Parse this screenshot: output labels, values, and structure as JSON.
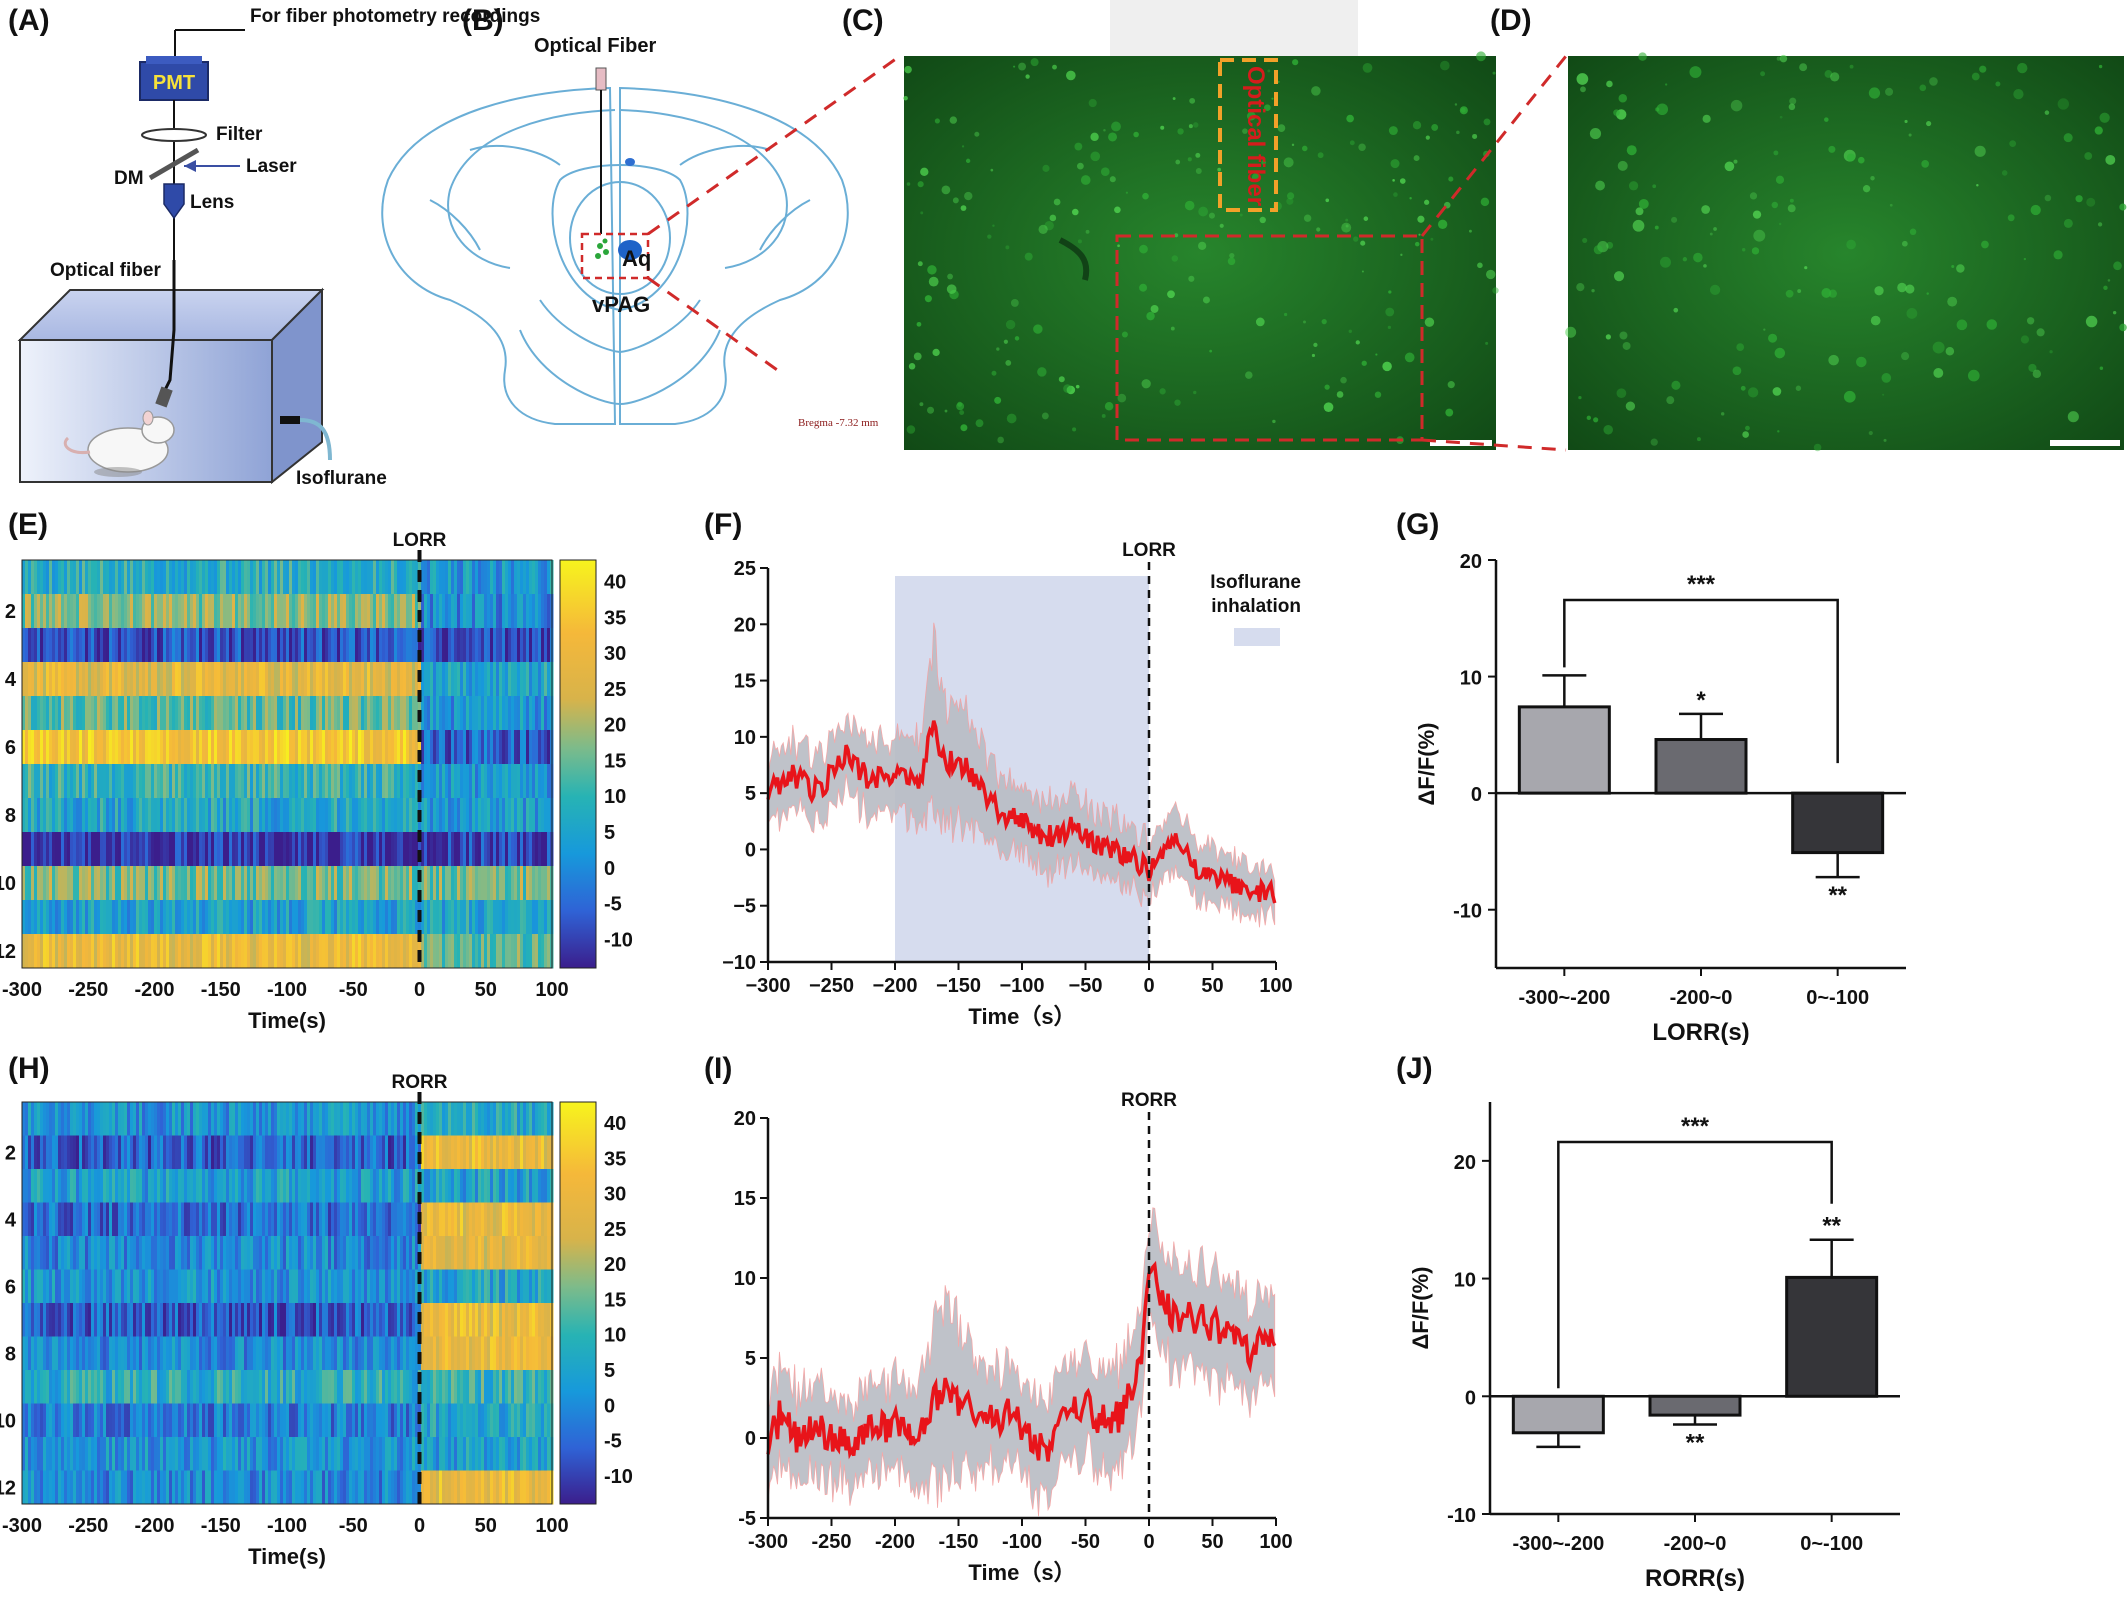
{
  "panel_labels": [
    "(A)",
    "(B)",
    "(C)",
    "(D)",
    "(E)",
    "(F)",
    "(G)",
    "(H)",
    "(I)",
    "(J)"
  ],
  "panel_a": {
    "fiber_photometry": "For fiber photometry recordings",
    "pmt": "PMT",
    "filter": "Filter",
    "dm": "DM",
    "laser": "Laser",
    "lens": "Lens",
    "optical_fiber": "Optical fiber",
    "isoflurane": "Isoflurane"
  },
  "panel_b": {
    "optical_fiber": "Optical Fiber",
    "aq": "Aq",
    "vpag": "vPAG",
    "bregma": "Bregma -7.32 mm"
  },
  "panel_c": {
    "label": "Optical fiber"
  },
  "colors": {
    "red_trace": "#e8141a",
    "shade_grey": "#b9bcc4",
    "shade_blue": "#d6dcee",
    "bar_light": "#a7a7ad",
    "bar_mid": "#6a6a70",
    "bar_dark": "#353539",
    "fluorescence": "#1e7a26"
  },
  "chart_data": [
    {
      "panel": "E",
      "type": "heatmap",
      "title": "LORR",
      "xlabel": "Time(s)",
      "ylabel": "",
      "x_ticks": [
        "-300",
        "-250",
        "-200",
        "-150",
        "-100",
        "-50",
        "0",
        "50",
        "100"
      ],
      "xlim": [
        -300,
        100
      ],
      "y_ticks": [
        "2",
        "4",
        "6",
        "8",
        "10",
        "12"
      ],
      "rows": 12,
      "colorbar_ticks": [
        "40",
        "35",
        "30",
        "25",
        "20",
        "15",
        "10",
        "5",
        "0",
        "-5",
        "-10"
      ],
      "colorbar_range": [
        -14,
        43
      ],
      "event_x": 0,
      "row_levels_pre": [
        8,
        18,
        -8,
        28,
        14,
        34,
        10,
        6,
        -12,
        16,
        4,
        30
      ],
      "row_levels_post": [
        3,
        0,
        -9,
        6,
        2,
        -6,
        2,
        4,
        -10,
        16,
        6,
        14
      ]
    },
    {
      "panel": "F",
      "type": "line",
      "title": "LORR",
      "xlabel": "Time（s）",
      "ylabel": "",
      "x_ticks": [
        "−300",
        "−250",
        "−200",
        "−150",
        "−100",
        "−50",
        "0",
        "50",
        "100"
      ],
      "y_ticks": [
        "25",
        "20",
        "15",
        "10",
        "5",
        "0",
        "−5",
        "−10"
      ],
      "xlim": [
        -300,
        100
      ],
      "ylim": [
        -10,
        25
      ],
      "shaded_region": {
        "x": [
          -200,
          0
        ],
        "label": "Isoflurane inhalation"
      },
      "legend": {
        "line1": "Isoflurane",
        "line2": "inhalation",
        "position": "top-right"
      },
      "event_x": 0,
      "series": [
        {
          "x": [
            -300,
            -280,
            -260,
            -240,
            -220,
            -200,
            -180,
            -170,
            -160,
            -150,
            -140,
            -120,
            -100,
            -80,
            -60,
            -40,
            -20,
            0,
            10,
            20,
            40,
            60,
            80,
            100
          ],
          "y": [
            5,
            6.5,
            5,
            8.5,
            6,
            7,
            6,
            11,
            7.5,
            8,
            6.5,
            3.5,
            2.5,
            1,
            2,
            0.5,
            -0.5,
            -2,
            -1,
            0.5,
            -2,
            -3,
            -3.5,
            -4.2
          ],
          "err": [
            2.5,
            2.8,
            3,
            3.2,
            3,
            3,
            4,
            7,
            5,
            5,
            4,
            3.2,
            3,
            3,
            3,
            2.8,
            2.6,
            2.5,
            2.5,
            2.6,
            2.4,
            2.2,
            2.2,
            2.2
          ]
        }
      ]
    },
    {
      "panel": "G",
      "type": "bar",
      "title": "",
      "xlabel": "LORR(s)",
      "ylabel": "ΔF/F(%)",
      "categories": [
        "-300~-200",
        "-200~0",
        "0~-100"
      ],
      "values": [
        7.4,
        4.6,
        -5.1
      ],
      "errors": [
        2.7,
        2.2,
        2.1
      ],
      "ylim": [
        -15,
        20
      ],
      "y_ticks": [
        "20",
        "10",
        "0",
        "-10"
      ],
      "bar_stars": [
        "",
        "*",
        "**"
      ],
      "bracket_stars": "***"
    },
    {
      "panel": "H",
      "type": "heatmap",
      "title": "RORR",
      "xlabel": "Time(s)",
      "ylabel": "",
      "x_ticks": [
        "-300",
        "-250",
        "-200",
        "-150",
        "-100",
        "-50",
        "0",
        "50",
        "100"
      ],
      "xlim": [
        -300,
        100
      ],
      "y_ticks": [
        "2",
        "4",
        "6",
        "8",
        "10",
        "12"
      ],
      "rows": 12,
      "colorbar_ticks": [
        "40",
        "35",
        "30",
        "25",
        "20",
        "15",
        "10",
        "5",
        "0",
        "-5",
        "-10"
      ],
      "colorbar_range": [
        -14,
        43
      ],
      "event_x": 0,
      "row_levels_pre": [
        2,
        -6,
        4,
        -4,
        0,
        2,
        -6,
        0,
        8,
        -2,
        2,
        0
      ],
      "row_levels_post": [
        6,
        30,
        4,
        30,
        28,
        6,
        30,
        30,
        10,
        6,
        4,
        30
      ]
    },
    {
      "panel": "I",
      "type": "line",
      "title": "RORR",
      "xlabel": "Time（s）",
      "ylabel": "",
      "x_ticks": [
        "-300",
        "-250",
        "-200",
        "-150",
        "-100",
        "-50",
        "0",
        "50",
        "100"
      ],
      "y_ticks": [
        "20",
        "15",
        "10",
        "5",
        "0",
        "-5"
      ],
      "xlim": [
        -300,
        100
      ],
      "ylim": [
        -5,
        20
      ],
      "event_x": 0,
      "series": [
        {
          "x": [
            -300,
            -290,
            -280,
            -260,
            -240,
            -220,
            -200,
            -180,
            -165,
            -150,
            -130,
            -110,
            -90,
            -80,
            -65,
            -50,
            -35,
            -20,
            -5,
            0,
            10,
            20,
            40,
            60,
            80,
            100
          ],
          "y": [
            -0.5,
            1.5,
            0,
            0.5,
            -0.5,
            0.5,
            1,
            0,
            3,
            2.5,
            1,
            1.5,
            0,
            -1,
            1.5,
            2,
            1,
            1.5,
            5,
            11,
            9,
            7.5,
            7.5,
            6.5,
            5.5,
            6
          ],
          "err": [
            2.5,
            3,
            2.8,
            2.8,
            2.6,
            2.6,
            2.6,
            3,
            5.5,
            4.5,
            3,
            3,
            3,
            3,
            3,
            3,
            3,
            3,
            3,
            3,
            3,
            3.2,
            3,
            3,
            2.8,
            2.8
          ]
        }
      ]
    },
    {
      "panel": "J",
      "type": "bar",
      "title": "",
      "xlabel": "RORR(s)",
      "ylabel": "ΔF/F(%)",
      "categories": [
        "-300~-200",
        "-200~0",
        "0~-100"
      ],
      "values": [
        -3.1,
        -1.6,
        10.1
      ],
      "errors": [
        1.2,
        0.8,
        3.2
      ],
      "ylim": [
        -10,
        25
      ],
      "y_ticks": [
        "20",
        "10",
        "0",
        "-10"
      ],
      "bar_stars": [
        "",
        "**",
        "**"
      ],
      "bracket_stars": "***"
    }
  ]
}
